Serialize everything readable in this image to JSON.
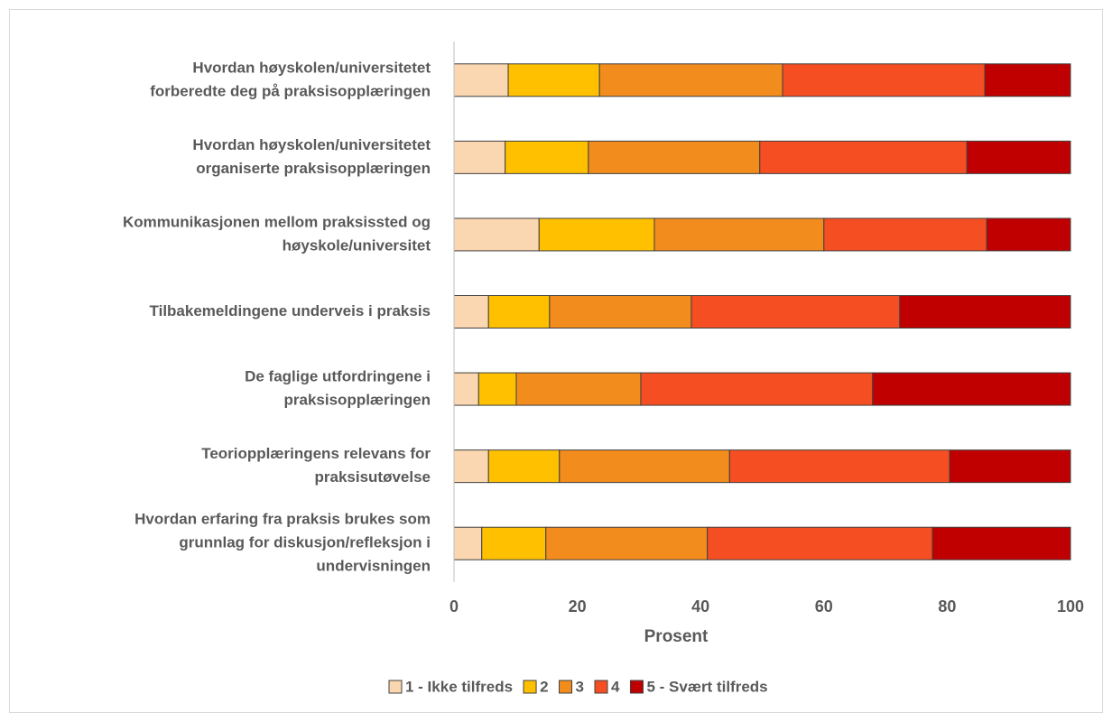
{
  "chart_data": {
    "type": "stacked-bar-horizontal",
    "x_label": "Prosent",
    "categories": [
      [
        "Hvordan høyskolen/universitetet",
        "forberedte deg på praksisopplæringen"
      ],
      [
        "Hvordan høyskolen/universitetet",
        "organiserte praksisopplæringen"
      ],
      [
        "Kommunikasjonen mellom praksissted og",
        "høyskole/universitet"
      ],
      [
        "Tilbakemeldingene underveis i praksis"
      ],
      [
        "De faglige utfordringene i",
        "praksisopplæringen"
      ],
      [
        "Teoriopplæringens relevans for",
        "praksisutøvelse"
      ],
      [
        "Hvordan erfaring fra praksis brukes som",
        "grunnlag for diskusjon/refleksjon i",
        "undervisningen"
      ]
    ],
    "series": [
      {
        "name": "1 - Ikke tilfreds",
        "color": "#fad7b0",
        "values": [
          8.8,
          8.3,
          13.8,
          5.6,
          4.0,
          5.6,
          4.5
        ]
      },
      {
        "name": "2",
        "color": "#ffc000",
        "values": [
          14.8,
          13.5,
          18.7,
          9.9,
          6.1,
          11.5,
          10.4
        ]
      },
      {
        "name": "3",
        "color": "#f28c1c",
        "values": [
          29.7,
          27.8,
          27.5,
          23.0,
          20.2,
          27.6,
          26.2
        ]
      },
      {
        "name": "4",
        "color": "#f44e22",
        "values": [
          32.8,
          33.6,
          26.4,
          33.8,
          37.6,
          35.7,
          36.5
        ]
      },
      {
        "name": "5 - Svært tilfreds",
        "color": "#c00000",
        "values": [
          13.9,
          16.8,
          13.6,
          27.7,
          32.1,
          19.6,
          22.4
        ]
      }
    ],
    "xlim": [
      0,
      100
    ],
    "xticks": [
      0,
      20,
      40,
      60,
      80,
      100
    ],
    "grid": false
  }
}
